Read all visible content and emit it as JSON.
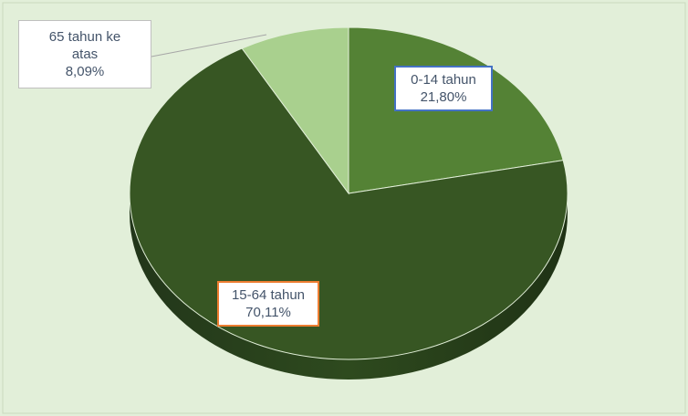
{
  "chart_data": {
    "type": "pie",
    "categories": [
      "0-14 tahun",
      "15-64 tahun",
      "65 tahun ke atas"
    ],
    "values": [
      21.8,
      70.11,
      8.09
    ],
    "value_labels": [
      "21,80%",
      "70,11%",
      "8,09%"
    ],
    "colors": [
      "#548235",
      "#375623",
      "#a9d08e"
    ]
  }
}
